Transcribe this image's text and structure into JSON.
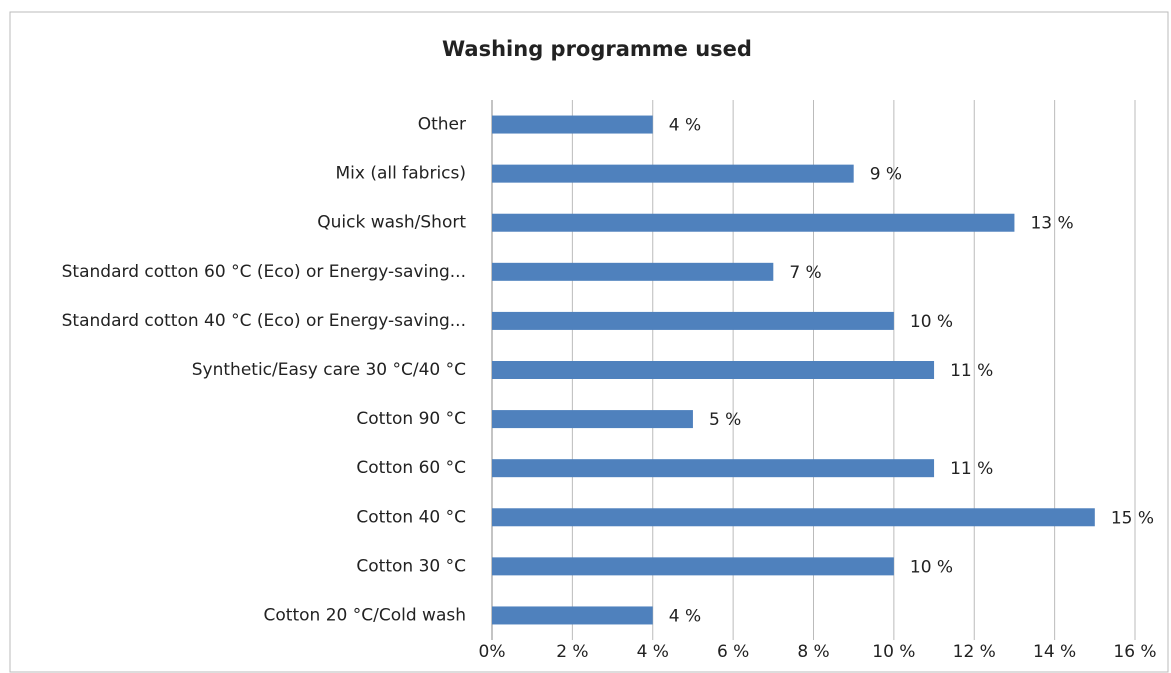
{
  "chart_data": {
    "type": "bar",
    "orientation": "horizontal",
    "title": "Washing programme used",
    "categories": [
      "Other",
      "Mix (all fabrics)",
      "Quick wash/Short",
      "Standard cotton 60 °C (Eco) or Energy-saving...",
      "Standard cotton 40 °C (Eco) or Energy-saving...",
      "Synthetic/Easy care 30 °C/40 °C",
      "Cotton 90 °C",
      "Cotton 60 °C",
      "Cotton 40 °C",
      "Cotton 30 °C",
      "Cotton 20 °C/Cold wash"
    ],
    "values": [
      4,
      9,
      13,
      7,
      10,
      11,
      5,
      11,
      15,
      10,
      4
    ],
    "value_labels": [
      "4 %",
      "9 %",
      "13 %",
      "7 %",
      "10 %",
      "11 %",
      "5 %",
      "11 %",
      "15 %",
      "10 %",
      "4 %"
    ],
    "color": "#4f81bd",
    "xlim": [
      0,
      16
    ],
    "xticks": [
      {
        "value": 0,
        "label": "0%"
      },
      {
        "value": 2,
        "label": "2 %"
      },
      {
        "value": 4,
        "label": "4 %"
      },
      {
        "value": 6,
        "label": "6 %"
      },
      {
        "value": 8,
        "label": "8 %"
      },
      {
        "value": 10,
        "label": "10 %"
      },
      {
        "value": 12,
        "label": "12 %"
      },
      {
        "value": 14,
        "label": "14 %"
      },
      {
        "value": 16,
        "label": "16 %"
      }
    ],
    "grid": true
  }
}
